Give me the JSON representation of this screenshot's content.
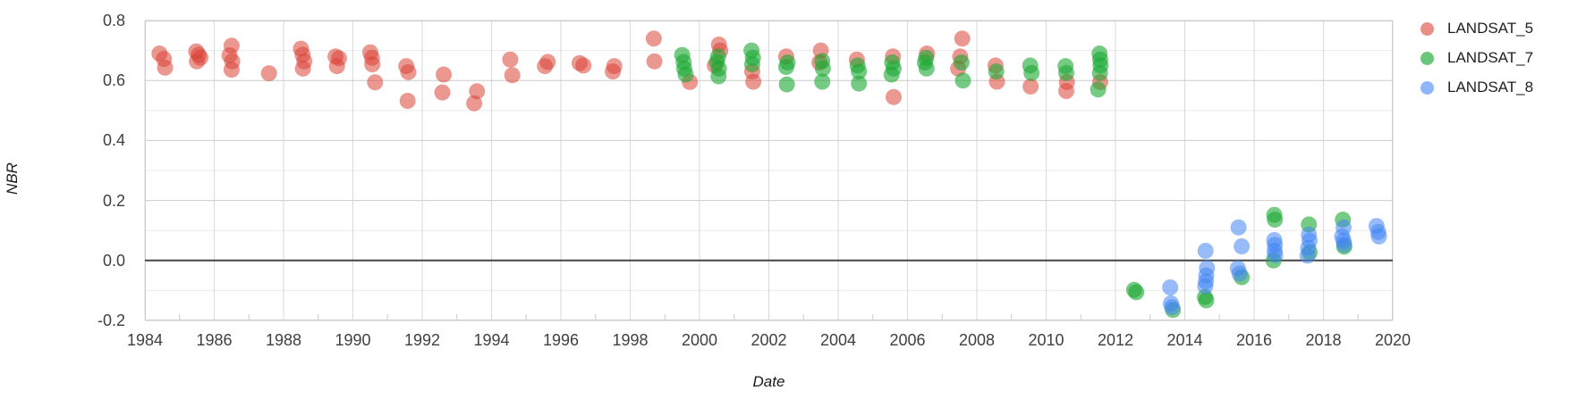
{
  "chart_data": {
    "type": "scatter",
    "xlabel": "Date",
    "ylabel": "NBR",
    "x_axis": {
      "min": 1984,
      "max": 2020,
      "major_step": 2,
      "minor_step": 1,
      "tick_labels": [
        "1984",
        "1986",
        "1988",
        "1990",
        "1992",
        "1994",
        "1996",
        "1998",
        "2000",
        "2002",
        "2004",
        "2006",
        "2008",
        "2010",
        "2012",
        "2014",
        "2016",
        "2018",
        "2020"
      ]
    },
    "y_axis": {
      "min": -0.2,
      "max": 0.8,
      "major_step": 0.2,
      "minor_step": 0.1,
      "ticks": [
        0.8,
        0.6,
        0.4,
        0.2,
        0.0,
        -0.2
      ],
      "tick_labels": [
        "0.8",
        "0.6",
        "0.4",
        "0.2",
        "0.0",
        "-0.2"
      ]
    },
    "grid": true,
    "zero_line": true,
    "zero_line_color": "#444444",
    "major_grid_color": "#cccccc",
    "minor_grid_color": "#ebebeb",
    "vertical_grid_color": "#d9d9d9",
    "legend_position": "right",
    "point_radius": 9,
    "series": [
      {
        "name": "LANDSAT_5",
        "color": "#db4437",
        "opacity": 0.55,
        "points": [
          [
            1984.42,
            0.69
          ],
          [
            1984.55,
            0.672
          ],
          [
            1984.58,
            0.643
          ],
          [
            1985.48,
            0.697
          ],
          [
            1985.55,
            0.686
          ],
          [
            1985.6,
            0.676
          ],
          [
            1985.5,
            0.664
          ],
          [
            1986.5,
            0.716
          ],
          [
            1986.44,
            0.684
          ],
          [
            1986.52,
            0.664
          ],
          [
            1986.5,
            0.636
          ],
          [
            1987.58,
            0.624
          ],
          [
            1988.5,
            0.706
          ],
          [
            1988.55,
            0.686
          ],
          [
            1988.6,
            0.664
          ],
          [
            1988.56,
            0.64
          ],
          [
            1989.5,
            0.68
          ],
          [
            1989.6,
            0.674
          ],
          [
            1989.54,
            0.648
          ],
          [
            1990.5,
            0.694
          ],
          [
            1990.55,
            0.676
          ],
          [
            1990.56,
            0.654
          ],
          [
            1990.64,
            0.594
          ],
          [
            1991.54,
            0.648
          ],
          [
            1991.6,
            0.628
          ],
          [
            1991.58,
            0.532
          ],
          [
            1992.62,
            0.62
          ],
          [
            1992.58,
            0.56
          ],
          [
            1993.58,
            0.564
          ],
          [
            1993.5,
            0.524
          ],
          [
            1994.54,
            0.67
          ],
          [
            1994.6,
            0.618
          ],
          [
            1995.54,
            0.648
          ],
          [
            1995.62,
            0.662
          ],
          [
            1996.54,
            0.658
          ],
          [
            1996.65,
            0.65
          ],
          [
            1997.54,
            0.648
          ],
          [
            1997.5,
            0.63
          ],
          [
            1998.68,
            0.74
          ],
          [
            1998.7,
            0.664
          ],
          [
            1999.72,
            0.595
          ],
          [
            2000.44,
            0.65
          ],
          [
            2000.56,
            0.72
          ],
          [
            2000.6,
            0.7
          ],
          [
            2001.52,
            0.63
          ],
          [
            2001.55,
            0.596
          ],
          [
            2002.5,
            0.68
          ],
          [
            2003.5,
            0.7
          ],
          [
            2003.46,
            0.66
          ],
          [
            2004.54,
            0.67
          ],
          [
            2005.58,
            0.68
          ],
          [
            2005.6,
            0.545
          ],
          [
            2006.56,
            0.69
          ],
          [
            2007.58,
            0.74
          ],
          [
            2007.52,
            0.68
          ],
          [
            2007.46,
            0.64
          ],
          [
            2008.54,
            0.65
          ],
          [
            2008.58,
            0.596
          ],
          [
            2009.55,
            0.58
          ],
          [
            2010.6,
            0.595
          ],
          [
            2010.58,
            0.565
          ],
          [
            2011.56,
            0.595
          ]
        ]
      },
      {
        "name": "LANDSAT_7",
        "color": "#1aa832",
        "opacity": 0.6,
        "points": [
          [
            1999.5,
            0.685
          ],
          [
            1999.54,
            0.662
          ],
          [
            1999.56,
            0.64
          ],
          [
            1999.6,
            0.62
          ],
          [
            2000.54,
            0.68
          ],
          [
            2000.5,
            0.662
          ],
          [
            2000.56,
            0.64
          ],
          [
            2000.55,
            0.614
          ],
          [
            2001.5,
            0.7
          ],
          [
            2001.54,
            0.676
          ],
          [
            2001.52,
            0.654
          ],
          [
            2002.54,
            0.66
          ],
          [
            2002.5,
            0.645
          ],
          [
            2002.52,
            0.587
          ],
          [
            2003.54,
            0.665
          ],
          [
            2003.56,
            0.64
          ],
          [
            2003.54,
            0.596
          ],
          [
            2004.56,
            0.65
          ],
          [
            2004.6,
            0.63
          ],
          [
            2004.6,
            0.59
          ],
          [
            2005.56,
            0.66
          ],
          [
            2005.6,
            0.64
          ],
          [
            2005.54,
            0.62
          ],
          [
            2006.54,
            0.676
          ],
          [
            2006.5,
            0.66
          ],
          [
            2006.55,
            0.64
          ],
          [
            2007.56,
            0.66
          ],
          [
            2007.6,
            0.6
          ],
          [
            2008.56,
            0.63
          ],
          [
            2009.54,
            0.65
          ],
          [
            2009.58,
            0.625
          ],
          [
            2010.56,
            0.648
          ],
          [
            2010.58,
            0.625
          ],
          [
            2011.54,
            0.69
          ],
          [
            2011.56,
            0.67
          ],
          [
            2011.57,
            0.65
          ],
          [
            2011.55,
            0.625
          ],
          [
            2011.5,
            0.57
          ],
          [
            2012.54,
            -0.098
          ],
          [
            2012.6,
            -0.106
          ],
          [
            2013.66,
            -0.165
          ],
          [
            2014.58,
            -0.122
          ],
          [
            2014.62,
            -0.133
          ],
          [
            2015.64,
            -0.056
          ],
          [
            2016.58,
            0.152
          ],
          [
            2016.6,
            0.136
          ],
          [
            2016.56,
            0.0
          ],
          [
            2017.58,
            0.12
          ],
          [
            2017.6,
            0.027
          ],
          [
            2018.56,
            0.136
          ],
          [
            2018.6,
            0.046
          ]
        ]
      },
      {
        "name": "LANDSAT_8",
        "color": "#4285f4",
        "opacity": 0.55,
        "points": [
          [
            2013.58,
            -0.09
          ],
          [
            2013.6,
            -0.143
          ],
          [
            2013.63,
            -0.156
          ],
          [
            2014.6,
            0.032
          ],
          [
            2014.64,
            -0.025
          ],
          [
            2014.62,
            -0.05
          ],
          [
            2014.61,
            -0.07
          ],
          [
            2014.59,
            -0.086
          ],
          [
            2015.55,
            0.11
          ],
          [
            2015.64,
            0.047
          ],
          [
            2015.53,
            -0.026
          ],
          [
            2015.58,
            -0.044
          ],
          [
            2016.58,
            0.068
          ],
          [
            2016.6,
            0.052
          ],
          [
            2016.59,
            0.032
          ],
          [
            2016.61,
            0.018
          ],
          [
            2017.58,
            0.086
          ],
          [
            2017.6,
            0.066
          ],
          [
            2017.56,
            0.042
          ],
          [
            2017.54,
            0.016
          ],
          [
            2018.58,
            0.11
          ],
          [
            2018.54,
            0.08
          ],
          [
            2018.58,
            0.066
          ],
          [
            2018.6,
            0.053
          ],
          [
            2019.53,
            0.115
          ],
          [
            2019.6,
            0.08
          ],
          [
            2019.58,
            0.095
          ]
        ]
      }
    ]
  },
  "legend": {
    "items": [
      {
        "label": "LANDSAT_5"
      },
      {
        "label": "LANDSAT_7"
      },
      {
        "label": "LANDSAT_8"
      }
    ]
  }
}
